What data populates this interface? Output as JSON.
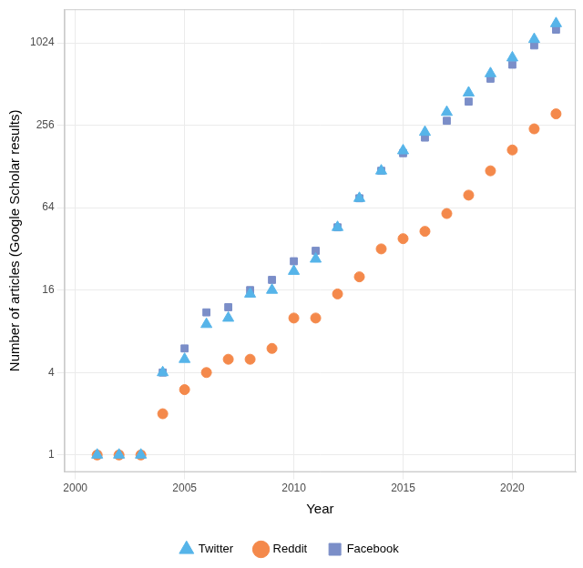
{
  "chart_data": {
    "type": "scatter",
    "x_label": "Year",
    "y_label": "Number of articles (Google Scholar results)",
    "x": [
      2001,
      2002,
      2003,
      2004,
      2005,
      2006,
      2007,
      2008,
      2009,
      2010,
      2011,
      2012,
      2013,
      2014,
      2015,
      2016,
      2017,
      2018,
      2019,
      2020,
      2021,
      2022
    ],
    "series": [
      {
        "name": "Facebook",
        "color": "#7b8ec8",
        "marker": "square",
        "values": [
          1,
          1,
          1,
          4,
          6,
          11,
          12,
          16,
          19,
          26,
          31,
          46,
          75,
          119,
          160,
          208,
          276,
          381,
          560,
          709,
          980,
          1278
        ]
      },
      {
        "name": "Reddit",
        "color": "#f4894b",
        "marker": "circle",
        "values": [
          1,
          1,
          1,
          2,
          3,
          4,
          5,
          5,
          6,
          10,
          10,
          15,
          20,
          32,
          38,
          43,
          58,
          79,
          119,
          169,
          241,
          310
        ]
      },
      {
        "name": "Twitter",
        "color": "#56b4e9",
        "marker": "triangle",
        "values": [
          1,
          1,
          1,
          4,
          5,
          9,
          10,
          15,
          16,
          22,
          27,
          46,
          75,
          119,
          167,
          228,
          319,
          442,
          611,
          797,
          1087,
          1417
        ]
      }
    ],
    "xlim": [
      1999.5,
      2022.9
    ],
    "xticks": [
      2000,
      2005,
      2010,
      2015,
      2020
    ],
    "ylim": [
      0.75,
      1800
    ],
    "yticks": [
      1,
      4,
      16,
      64,
      256,
      1024
    ],
    "log": "y",
    "grid": true,
    "legend": "bottom"
  }
}
